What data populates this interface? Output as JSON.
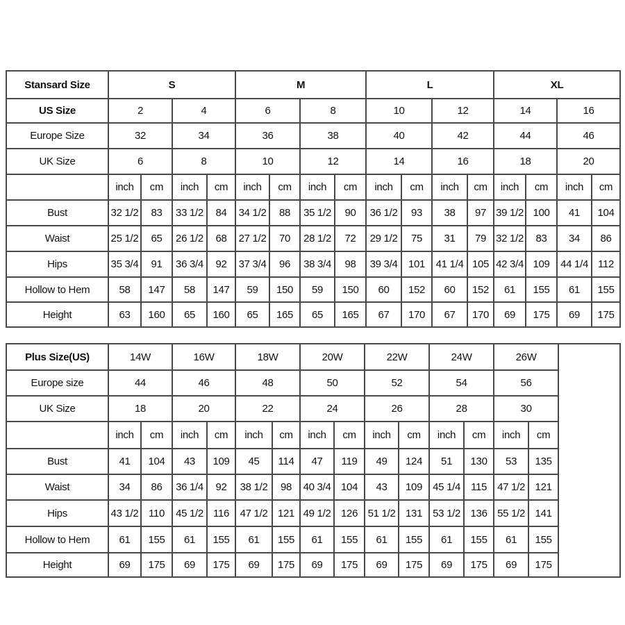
{
  "standard": {
    "header_label": "Stansard Size",
    "groups": [
      "S",
      "M",
      "L",
      "XL"
    ],
    "rows": [
      {
        "label": "US Size",
        "bold": true,
        "values": [
          "2",
          "4",
          "6",
          "8",
          "10",
          "12",
          "14",
          "16"
        ]
      },
      {
        "label": "Europe Size",
        "values": [
          "32",
          "34",
          "36",
          "38",
          "40",
          "42",
          "44",
          "46"
        ]
      },
      {
        "label": "UK Size",
        "values": [
          "6",
          "8",
          "10",
          "12",
          "14",
          "16",
          "18",
          "20"
        ]
      }
    ],
    "unit_row": [
      "inch",
      "cm",
      "inch",
      "cm",
      "inch",
      "cm",
      "inch",
      "cm",
      "inch",
      "cm",
      "inch",
      "cm",
      "inch",
      "cm",
      "inch",
      "cm"
    ],
    "measurements": [
      {
        "label": "Bust",
        "values": [
          "32 1/2",
          "83",
          "33 1/2",
          "84",
          "34 1/2",
          "88",
          "35 1/2",
          "90",
          "36 1/2",
          "93",
          "38",
          "97",
          "39 1/2",
          "100",
          "41",
          "104"
        ]
      },
      {
        "label": "Waist",
        "values": [
          "25 1/2",
          "65",
          "26 1/2",
          "68",
          "27 1/2",
          "70",
          "28 1/2",
          "72",
          "29 1/2",
          "75",
          "31",
          "79",
          "32 1/2",
          "83",
          "34",
          "86"
        ]
      },
      {
        "label": "Hips",
        "values": [
          "35 3/4",
          "91",
          "36 3/4",
          "92",
          "37 3/4",
          "96",
          "38 3/4",
          "98",
          "39 3/4",
          "101",
          "41 1/4",
          "105",
          "42 3/4",
          "109",
          "44 1/4",
          "112"
        ]
      },
      {
        "label": "Hollow to Hem",
        "values": [
          "58",
          "147",
          "58",
          "147",
          "59",
          "150",
          "59",
          "150",
          "60",
          "152",
          "60",
          "152",
          "61",
          "155",
          "61",
          "155"
        ]
      },
      {
        "label": "Height",
        "values": [
          "63",
          "160",
          "65",
          "160",
          "65",
          "165",
          "65",
          "165",
          "67",
          "170",
          "67",
          "170",
          "69",
          "175",
          "69",
          "175"
        ]
      }
    ]
  },
  "plus": {
    "header_label": "Plus Size(US)",
    "sizes": [
      "14W",
      "16W",
      "18W",
      "20W",
      "22W",
      "24W",
      "26W"
    ],
    "rows": [
      {
        "label": "Europe size",
        "values": [
          "44",
          "46",
          "48",
          "50",
          "52",
          "54",
          "56"
        ]
      },
      {
        "label": "UK Size",
        "values": [
          "18",
          "20",
          "22",
          "24",
          "26",
          "28",
          "30"
        ]
      }
    ],
    "unit_row": [
      "inch",
      "cm",
      "inch",
      "cm",
      "inch",
      "cm",
      "inch",
      "cm",
      "inch",
      "cm",
      "inch",
      "cm",
      "inch",
      "cm"
    ],
    "measurements": [
      {
        "label": "Bust",
        "values": [
          "41",
          "104",
          "43",
          "109",
          "45",
          "114",
          "47",
          "119",
          "49",
          "124",
          "51",
          "130",
          "53",
          "135"
        ]
      },
      {
        "label": "Waist",
        "values": [
          "34",
          "86",
          "36 1/4",
          "92",
          "38 1/2",
          "98",
          "40 3/4",
          "104",
          "43",
          "109",
          "45 1/4",
          "115",
          "47 1/2",
          "121"
        ]
      },
      {
        "label": "Hips",
        "values": [
          "43 1/2",
          "110",
          "45 1/2",
          "116",
          "47 1/2",
          "121",
          "49 1/2",
          "126",
          "51 1/2",
          "131",
          "53 1/2",
          "136",
          "55 1/2",
          "141"
        ]
      },
      {
        "label": "Hollow to Hem",
        "values": [
          "61",
          "155",
          "61",
          "155",
          "61",
          "155",
          "61",
          "155",
          "61",
          "155",
          "61",
          "155",
          "61",
          "155"
        ]
      },
      {
        "label": "Height",
        "values": [
          "69",
          "175",
          "69",
          "175",
          "69",
          "175",
          "69",
          "175",
          "69",
          "175",
          "69",
          "175",
          "69",
          "175"
        ]
      }
    ]
  }
}
